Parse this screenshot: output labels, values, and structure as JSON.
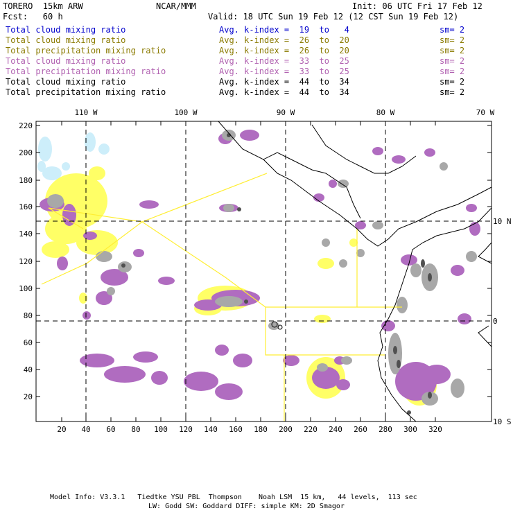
{
  "header": {
    "model": "TORERO  15km ARW",
    "org": "NCAR/MMM",
    "init": "Init: 06 UTC Fri 17 Feb 12",
    "fcst": "Fcst:   60 h",
    "valid": "Valid: 18 UTC Sun 19 Feb 12 (12 CST Sun 19 Feb 12)"
  },
  "legend_rows": [
    {
      "field": "Total cloud mixing ratio",
      "kindex": "Avg. k-index =  19  to   4",
      "sm": "sm= 2",
      "color": "#0000cc"
    },
    {
      "field": "Total cloud mixing ratio",
      "kindex": "Avg. k-index =  26  to  20",
      "sm": "sm= 2",
      "color": "#8a7a00"
    },
    {
      "field": "Total precipitation mixing ratio",
      "kindex": "Avg. k-index =  26  to  20",
      "sm": "sm= 2",
      "color": "#8a7a00"
    },
    {
      "field": "Total cloud mixing ratio",
      "kindex": "Avg. k-index =  33  to  25",
      "sm": "sm= 2",
      "color": "#b060b0"
    },
    {
      "field": "Total precipitation mixing ratio",
      "kindex": "Avg. k-index =  33  to  25",
      "sm": "sm= 2",
      "color": "#b060b0"
    },
    {
      "field": "Total cloud mixing ratio",
      "kindex": "Avg. k-index =  44  to  34",
      "sm": "sm= 2",
      "color": "#000000"
    },
    {
      "field": "Total precipitation mixing ratio",
      "kindex": "Avg. k-index =  44  to  34",
      "sm": "sm= 2",
      "color": "#000000"
    }
  ],
  "map": {
    "lon_labels": [
      "110 W",
      "100 W",
      "90 W",
      "80 W",
      "70 W"
    ],
    "lat_labels": [
      "10 N",
      "0",
      "10 S"
    ],
    "x_ticks": [
      "20",
      "40",
      "60",
      "80",
      "100",
      "120",
      "140",
      "160",
      "180",
      "200",
      "220",
      "240",
      "260",
      "280",
      "300",
      "320"
    ],
    "y_ticks": [
      "220",
      "200",
      "180",
      "160",
      "140",
      "120",
      "100",
      "80",
      "60",
      "40",
      "20"
    ],
    "colors": {
      "light_blue": "#cdeefa",
      "yellow": "#ffff66",
      "purple": "#b06cc0",
      "gray": "#a8a8a8",
      "dark_gray": "#505050",
      "boundary": "#ffee33"
    }
  },
  "footer": {
    "line1": "Model Info: V3.3.1   Tiedtke YSU PBL  Thompson    Noah LSM  15 km,   44 levels,  113 sec",
    "line2": "LW: Godd SW: Goddard DIFF: simple KM: 2D Smagor"
  }
}
